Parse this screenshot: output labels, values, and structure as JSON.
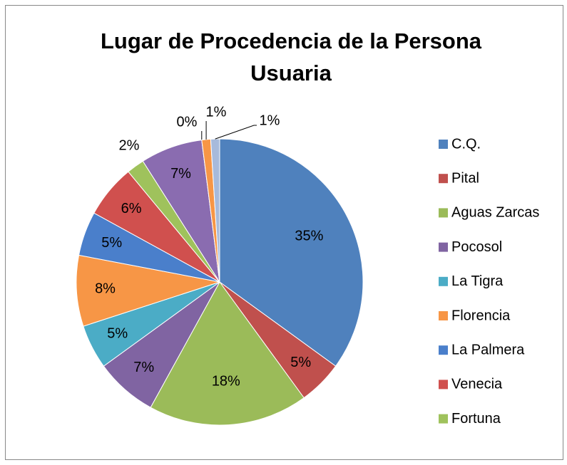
{
  "chart_data": {
    "type": "pie",
    "title": "Lugar de Procedencia de la Persona Usuaria",
    "categories": [
      "C.Q.",
      "Pital",
      "Aguas Zarcas",
      "Pocosol",
      "La Tigra",
      "Florencia",
      "La Palmera",
      "Venecia",
      "Fortuna",
      null,
      null,
      null,
      null
    ],
    "values": [
      35,
      5,
      18,
      7,
      5,
      8,
      5,
      6,
      2,
      7,
      0,
      1,
      1
    ],
    "value_labels": [
      "35%",
      "5%",
      "18%",
      "7%",
      "5%",
      "8%",
      "5%",
      "6%",
      "2%",
      "7%",
      "0%",
      "1%",
      "1%"
    ],
    "colors": [
      "#4F81BD",
      "#C0504D",
      "#9BBB59",
      "#8064A2",
      "#4BACC6",
      "#F79646",
      "#4A7FCB",
      "#D0504E",
      "#9FC25C",
      "#8A6CB0",
      "#4BACC6",
      "#F79646",
      "#A7BADB"
    ],
    "legend": "right"
  }
}
